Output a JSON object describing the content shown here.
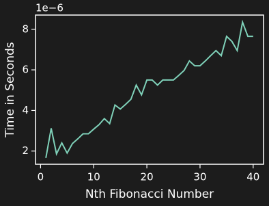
{
  "chart_data": {
    "type": "line",
    "x_label": "Nth Fibonacci Number",
    "y_label": "Time in Seconds",
    "y_offset_label": "1e−6",
    "x": [
      1,
      2,
      3,
      4,
      5,
      6,
      7,
      8,
      9,
      10,
      11,
      12,
      13,
      14,
      15,
      16,
      17,
      18,
      19,
      20,
      21,
      22,
      23,
      24,
      25,
      26,
      27,
      28,
      29,
      30,
      31,
      32,
      33,
      34,
      35,
      36,
      37,
      38,
      39,
      40
    ],
    "values": [
      1.66,
      3.12,
      1.86,
      2.4,
      1.9,
      2.37,
      2.6,
      2.85,
      2.85,
      3.08,
      3.3,
      3.6,
      3.35,
      4.27,
      4.07,
      4.3,
      4.55,
      5.25,
      4.77,
      5.5,
      5.5,
      5.25,
      5.5,
      5.5,
      5.5,
      5.73,
      5.97,
      6.44,
      6.2,
      6.2,
      6.44,
      6.7,
      6.95,
      6.7,
      7.65,
      7.4,
      6.95,
      8.35,
      7.65,
      7.65
    ],
    "color": "#7fd1b9",
    "xlim": [
      -0.95,
      41.95
    ],
    "xticks": [
      0,
      10,
      20,
      30,
      40
    ],
    "ylim": [
      1.35,
      8.7
    ],
    "yticks": [
      2,
      4,
      6,
      8
    ]
  }
}
